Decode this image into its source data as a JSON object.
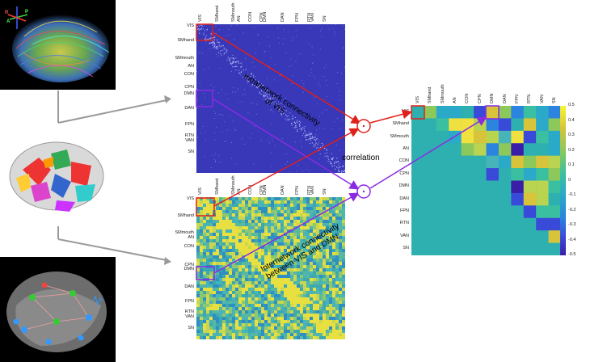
{
  "networks": [
    "VIS",
    "SMhand",
    "SMmouth",
    "AN",
    "CON",
    "CPN",
    "DMN",
    "DAN",
    "FPN",
    "RTN",
    "VAN",
    "SN"
  ],
  "matrix_top_labels": [
    "VIS",
    "SMhand",
    "SMmouth AN",
    "CON",
    "CPN DMN",
    "DAN",
    "FPN",
    "RTN VAN",
    "SN"
  ],
  "left_labels_top": [
    "VIS",
    "SMhand",
    "SMmouth",
    "AN",
    "CON",
    "CPN",
    "DMN",
    "DAN",
    "FPN",
    "RTN",
    "VAN",
    "SN"
  ],
  "intra_annotation": "Intranetwork connectivity\nof VIS",
  "inter_annotation": "Internetwork connectivity\nbetween VIS and DMN",
  "correlation_label": "correlation",
  "brain_axes": {
    "r": "R",
    "a": "A",
    "p": "P"
  },
  "colorbar_ticks": [
    "0.5",
    "0.4",
    "0.3",
    "0.2",
    "0.1",
    "0",
    "-0.1",
    "-0.2",
    "-0.3",
    "-0.4",
    "-0.5"
  ],
  "colors": {
    "red": "#e0201b",
    "purple": "#8a2be2",
    "matrix_bg": "#3a3ab0",
    "gray_arrow": "#9a9a9a"
  }
}
